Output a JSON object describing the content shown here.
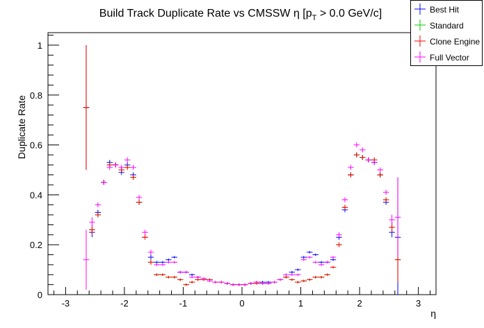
{
  "chart_data": {
    "type": "scatter",
    "title": "Build Track Duplicate Rate vs CMSSW η [p",
    "title_sub": "T",
    "title_tail": " > 0.0 GeV/c]",
    "xlabel": "η",
    "ylabel": "Duplicate Rate",
    "xlim": [
      -3.3,
      3.3
    ],
    "ylim": [
      0,
      1.05
    ],
    "xticks": [
      -3,
      -2,
      -1,
      0,
      1,
      2,
      3
    ],
    "xtick_labels": [
      "-3",
      "-2",
      "-1",
      "0",
      "1",
      "2",
      "3"
    ],
    "yticks": [
      0,
      0.2,
      0.4,
      0.6,
      0.8,
      1
    ],
    "ytick_labels": [
      "0",
      "0.2",
      "0.4",
      "0.6",
      "0.8",
      "1"
    ],
    "grid": false,
    "legend_position": "top-right",
    "bin_halfwidth": 0.05,
    "series": [
      {
        "name": "Best Hit",
        "color": "#0000ff",
        "x": [
          -2.65,
          -2.55,
          -2.45,
          -2.35,
          -2.25,
          -2.15,
          -2.05,
          -1.95,
          -1.85,
          -1.75,
          -1.65,
          -1.55,
          -1.45,
          -1.35,
          -1.25,
          -1.15,
          -1.05,
          -0.95,
          -0.85,
          -0.75,
          -0.65,
          -0.55,
          -0.45,
          -0.35,
          -0.25,
          -0.15,
          -0.05,
          0.05,
          0.15,
          0.25,
          0.35,
          0.45,
          0.55,
          0.65,
          0.75,
          0.85,
          0.95,
          1.05,
          1.15,
          1.25,
          1.35,
          1.45,
          1.55,
          1.65,
          1.75,
          1.85,
          1.95,
          2.05,
          2.15,
          2.25,
          2.35,
          2.45,
          2.55,
          2.65
        ],
        "y": [
          0.75,
          0.25,
          0.33,
          0.45,
          0.53,
          0.52,
          0.49,
          0.52,
          0.48,
          0.37,
          0.23,
          0.15,
          0.13,
          0.13,
          0.14,
          0.15,
          0.09,
          0.09,
          0.08,
          0.07,
          0.06,
          0.06,
          0.05,
          0.05,
          0.045,
          0.04,
          0.04,
          0.04,
          0.045,
          0.05,
          0.05,
          0.05,
          0.05,
          0.06,
          0.07,
          0.09,
          0.1,
          0.15,
          0.17,
          0.16,
          0.13,
          0.13,
          0.14,
          0.23,
          0.34,
          0.48,
          0.56,
          0.55,
          0.54,
          0.53,
          0.48,
          0.37,
          0.25,
          0.23
        ],
        "yerr": [
          0.25,
          0.02,
          0.01,
          0.01,
          0.01,
          0.01,
          0.01,
          0.01,
          0.01,
          0.01,
          0.01,
          0.01,
          0.005,
          0.005,
          0.005,
          0.005,
          0.005,
          0.005,
          0.005,
          0.005,
          0.005,
          0.005,
          0.005,
          0.005,
          0.005,
          0.005,
          0.005,
          0.005,
          0.005,
          0.005,
          0.005,
          0.005,
          0.005,
          0.005,
          0.005,
          0.005,
          0.005,
          0.005,
          0.005,
          0.005,
          0.005,
          0.005,
          0.005,
          0.01,
          0.01,
          0.01,
          0.01,
          0.01,
          0.01,
          0.01,
          0.01,
          0.01,
          0.02,
          0.24
        ]
      },
      {
        "name": "Standard",
        "color": "#00cc00",
        "x": [
          -2.65,
          -2.55,
          -2.45,
          -2.35,
          -2.25,
          -2.15,
          -2.05,
          -1.95,
          -1.85,
          -1.75,
          -1.65,
          -1.55,
          -1.45,
          -1.35,
          -1.25,
          -1.15,
          -1.05,
          -0.95,
          -0.85,
          -0.75,
          -0.65,
          -0.55,
          -0.45,
          -0.35,
          -0.25,
          -0.15,
          -0.05,
          0.05,
          0.15,
          0.25,
          0.35,
          0.45,
          0.55,
          0.65,
          0.75,
          0.85,
          0.95,
          1.05,
          1.15,
          1.25,
          1.35,
          1.45,
          1.55,
          1.65,
          1.75,
          1.85,
          1.95,
          2.05,
          2.15,
          2.25,
          2.35,
          2.45,
          2.55,
          2.65
        ],
        "y": [
          0.75,
          0.26,
          0.32,
          0.45,
          0.52,
          0.52,
          0.5,
          0.51,
          0.47,
          0.37,
          0.23,
          0.13,
          0.08,
          0.08,
          0.07,
          0.07,
          0.06,
          0.04,
          0.05,
          0.06,
          0.06,
          0.06,
          0.05,
          0.05,
          0.045,
          0.04,
          0.04,
          0.04,
          0.045,
          0.045,
          0.045,
          0.045,
          0.05,
          0.06,
          0.07,
          0.06,
          0.05,
          0.055,
          0.06,
          0.07,
          0.07,
          0.08,
          0.11,
          0.2,
          0.35,
          0.48,
          0.56,
          0.55,
          0.54,
          0.54,
          0.48,
          0.38,
          0.27,
          0.14
        ],
        "yerr": [
          0.25,
          0.02,
          0.01,
          0.01,
          0.01,
          0.01,
          0.01,
          0.01,
          0.01,
          0.01,
          0.01,
          0.01,
          0.005,
          0.005,
          0.005,
          0.005,
          0.005,
          0.005,
          0.005,
          0.005,
          0.005,
          0.005,
          0.005,
          0.005,
          0.005,
          0.005,
          0.005,
          0.005,
          0.005,
          0.005,
          0.005,
          0.005,
          0.005,
          0.005,
          0.005,
          0.005,
          0.005,
          0.005,
          0.005,
          0.005,
          0.005,
          0.005,
          0.005,
          0.01,
          0.01,
          0.01,
          0.01,
          0.01,
          0.01,
          0.01,
          0.01,
          0.01,
          0.02,
          0.09
        ]
      },
      {
        "name": "Clone Engine",
        "color": "#ff0000",
        "x": [
          -2.65,
          -2.55,
          -2.45,
          -2.35,
          -2.25,
          -2.15,
          -2.05,
          -1.95,
          -1.85,
          -1.75,
          -1.65,
          -1.55,
          -1.45,
          -1.35,
          -1.25,
          -1.15,
          -1.05,
          -0.95,
          -0.85,
          -0.75,
          -0.65,
          -0.55,
          -0.45,
          -0.35,
          -0.25,
          -0.15,
          -0.05,
          0.05,
          0.15,
          0.25,
          0.35,
          0.45,
          0.55,
          0.65,
          0.75,
          0.85,
          0.95,
          1.05,
          1.15,
          1.25,
          1.35,
          1.45,
          1.55,
          1.65,
          1.75,
          1.85,
          1.95,
          2.05,
          2.15,
          2.25,
          2.35,
          2.45,
          2.55,
          2.65
        ],
        "y": [
          0.75,
          0.26,
          0.32,
          0.45,
          0.52,
          0.52,
          0.5,
          0.51,
          0.47,
          0.37,
          0.23,
          0.13,
          0.08,
          0.08,
          0.07,
          0.07,
          0.06,
          0.04,
          0.05,
          0.06,
          0.06,
          0.06,
          0.05,
          0.05,
          0.045,
          0.04,
          0.04,
          0.04,
          0.045,
          0.045,
          0.045,
          0.045,
          0.05,
          0.06,
          0.07,
          0.06,
          0.05,
          0.055,
          0.06,
          0.07,
          0.07,
          0.08,
          0.11,
          0.2,
          0.35,
          0.48,
          0.56,
          0.55,
          0.54,
          0.54,
          0.48,
          0.38,
          0.27,
          0.14
        ],
        "yerr": [
          0.25,
          0.02,
          0.01,
          0.01,
          0.01,
          0.01,
          0.01,
          0.01,
          0.01,
          0.01,
          0.01,
          0.01,
          0.005,
          0.005,
          0.005,
          0.005,
          0.005,
          0.005,
          0.005,
          0.005,
          0.005,
          0.005,
          0.005,
          0.005,
          0.005,
          0.005,
          0.005,
          0.005,
          0.005,
          0.005,
          0.005,
          0.005,
          0.005,
          0.005,
          0.005,
          0.005,
          0.005,
          0.005,
          0.005,
          0.005,
          0.005,
          0.005,
          0.005,
          0.01,
          0.01,
          0.01,
          0.01,
          0.01,
          0.01,
          0.01,
          0.01,
          0.01,
          0.02,
          0.09
        ]
      },
      {
        "name": "Full Vector",
        "color": "#ff00ff",
        "x": [
          -2.65,
          -2.55,
          -2.45,
          -2.35,
          -2.25,
          -2.15,
          -2.05,
          -1.95,
          -1.85,
          -1.75,
          -1.65,
          -1.55,
          -1.45,
          -1.35,
          -1.25,
          -1.15,
          -1.05,
          -0.95,
          -0.85,
          -0.75,
          -0.65,
          -0.55,
          -0.45,
          -0.35,
          -0.25,
          -0.15,
          -0.05,
          0.05,
          0.15,
          0.25,
          0.35,
          0.45,
          0.55,
          0.65,
          0.75,
          0.85,
          0.95,
          1.05,
          1.15,
          1.25,
          1.35,
          1.45,
          1.55,
          1.65,
          1.75,
          1.85,
          1.95,
          2.05,
          2.15,
          2.25,
          2.35,
          2.45,
          2.55,
          2.65
        ],
        "y": [
          0.14,
          0.29,
          0.36,
          0.45,
          0.51,
          0.52,
          0.51,
          0.54,
          0.51,
          0.39,
          0.25,
          0.17,
          0.12,
          0.12,
          0.13,
          0.13,
          0.09,
          0.09,
          0.07,
          0.07,
          0.065,
          0.055,
          0.05,
          0.05,
          0.045,
          0.04,
          0.04,
          0.04,
          0.045,
          0.05,
          0.045,
          0.045,
          0.05,
          0.06,
          0.08,
          0.08,
          0.08,
          0.14,
          0.15,
          0.13,
          0.12,
          0.13,
          0.15,
          0.24,
          0.38,
          0.51,
          0.6,
          0.58,
          0.54,
          0.53,
          0.5,
          0.41,
          0.3,
          0.31
        ],
        "yerr": [
          0.12,
          0.02,
          0.01,
          0.01,
          0.01,
          0.01,
          0.01,
          0.01,
          0.01,
          0.01,
          0.01,
          0.01,
          0.005,
          0.005,
          0.005,
          0.005,
          0.005,
          0.005,
          0.005,
          0.005,
          0.005,
          0.005,
          0.005,
          0.005,
          0.005,
          0.005,
          0.005,
          0.005,
          0.005,
          0.005,
          0.005,
          0.005,
          0.005,
          0.005,
          0.005,
          0.005,
          0.005,
          0.005,
          0.005,
          0.005,
          0.005,
          0.005,
          0.005,
          0.01,
          0.01,
          0.01,
          0.01,
          0.01,
          0.01,
          0.01,
          0.01,
          0.01,
          0.02,
          0.16
        ]
      }
    ]
  }
}
